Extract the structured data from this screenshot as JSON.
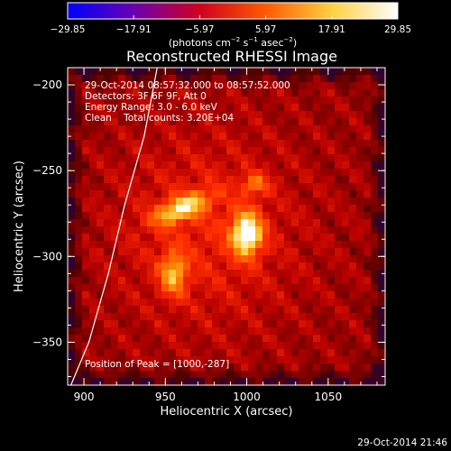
{
  "chart_data": {
    "type": "heatmap",
    "title": "Reconstructed RHESSI Image",
    "xlabel": "Heliocentric X (arcsec)",
    "ylabel": "Heliocentric Y (arcsec)",
    "xlim": [
      890,
      1085
    ],
    "ylim": [
      -375,
      -190
    ],
    "x_ticks": [
      900,
      950,
      1000,
      1050
    ],
    "y_ticks": [
      -200,
      -250,
      -300,
      -350
    ],
    "x_tick_labels": [
      "900",
      "950",
      "1000",
      "1050"
    ],
    "y_tick_labels": [
      "−200",
      "−250",
      "−300",
      "−350"
    ],
    "colorbar": {
      "min": -29.85,
      "max": 29.85,
      "ticks": [
        -29.85,
        -17.91,
        -5.97,
        5.97,
        17.91,
        29.85
      ],
      "tick_labels": [
        "−29.85",
        "−17.91",
        "−5.97",
        "5.97",
        "17.91",
        "29.85"
      ],
      "label_parts": [
        "(photons cm",
        "−2",
        " s",
        "−1",
        " asec",
        "−2",
        ")"
      ],
      "colors": [
        "#0000ff",
        "#6a00b0",
        "#d0001e",
        "#ff5a00",
        "#ffd040",
        "#ffffff"
      ]
    },
    "sources": [
      {
        "x": 1000,
        "y": -287,
        "peak": 29.85
      },
      {
        "x": 960,
        "y": -272,
        "peak": 24.0
      },
      {
        "x": 955,
        "y": -310,
        "peak": 20.0
      },
      {
        "x": 1005,
        "y": -258,
        "peak": 15.0
      }
    ],
    "limb_curve": [
      [
        945,
        -190
      ],
      [
        937,
        -230
      ],
      [
        925,
        -270
      ],
      [
        915,
        -310
      ],
      [
        903,
        -350
      ],
      [
        892,
        -375
      ]
    ],
    "annotations": {
      "time_range": "29-Oct-2014 08:57:32.000 to 08:57:52.000",
      "detectors": "Detectors: 3F 6F 9F, Att 0",
      "energy_range": "Energy Range: 3.0 - 6.0 keV",
      "clean": "Clean    Total counts: 3.20E+04",
      "peak_position": "Position of Peak = [1000,-287]"
    },
    "timestamp": "29-Oct-2014 21:46"
  }
}
